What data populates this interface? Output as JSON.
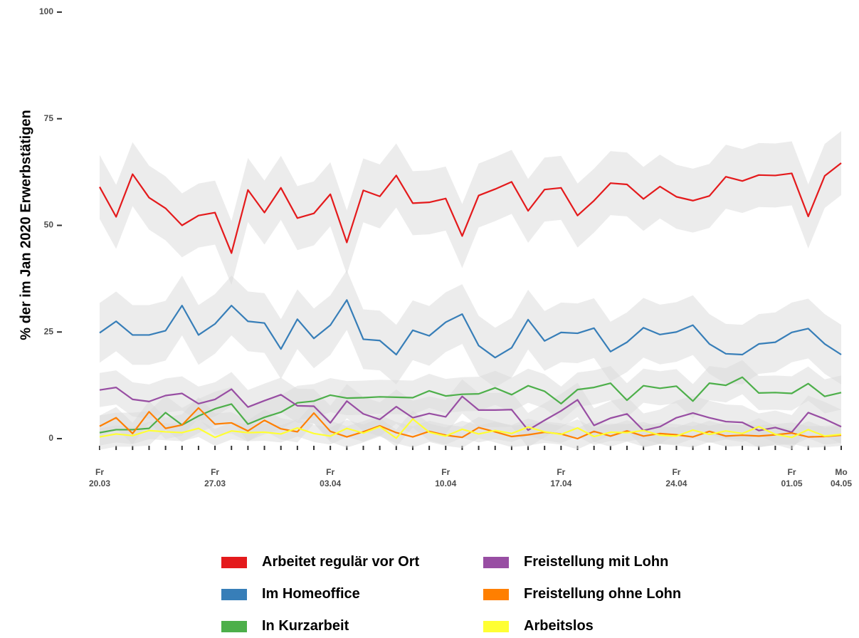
{
  "chart_data": {
    "type": "line",
    "y_label": "% der im Jan 2020 Erwerbstätigen",
    "categories": [
      "Fr 20.03",
      null,
      null,
      null,
      null,
      null,
      null,
      "Fr 27.03",
      null,
      null,
      null,
      null,
      null,
      null,
      "Fr 03.04",
      null,
      null,
      null,
      null,
      null,
      null,
      "Fr 10.04",
      null,
      null,
      null,
      null,
      null,
      null,
      "Fr 17.04",
      null,
      null,
      null,
      null,
      null,
      null,
      "Fr 24.04",
      null,
      null,
      null,
      null,
      null,
      null,
      "Fr 01.05",
      null,
      null,
      "Mo 04.05"
    ],
    "ylim": [
      0,
      100
    ],
    "yticks": [
      0,
      25,
      50,
      75,
      100
    ],
    "band_color": "#d9d9d9",
    "series": [
      {
        "name": "Arbeitet regulär vor Ort",
        "color": "#e41a1c",
        "ci": 7.5,
        "values": [
          59,
          52,
          62,
          56.5,
          54,
          50,
          52.3,
          53,
          43.5,
          58.3,
          53,
          58.8,
          51.7,
          52.8,
          57.3,
          46,
          58.2,
          56.8,
          61.7,
          55.2,
          55.4,
          56.3,
          47.5,
          57,
          58.5,
          60.2,
          53.4,
          58.4,
          58.8,
          52.3,
          55.8,
          59.9,
          59.6,
          56.2,
          59.1,
          56.7,
          55.8,
          56.9,
          61.4,
          60.4,
          61.8,
          61.7,
          62.2,
          52.1,
          61.6,
          64.6
        ]
      },
      {
        "name": "Im Homeoffice",
        "color": "#377eb8",
        "ci": 7,
        "values": [
          24.8,
          27.5,
          24.3,
          24.3,
          25.3,
          31.2,
          24.3,
          26.9,
          31.2,
          27.5,
          27.1,
          21,
          28,
          23.5,
          26.6,
          32.5,
          23.3,
          23,
          19.7,
          25.4,
          24.1,
          27.3,
          29.2,
          21.8,
          19,
          21.3,
          27.9,
          22.9,
          24.9,
          24.7,
          25.9,
          20.4,
          22.6,
          26,
          24.4,
          25,
          26.6,
          22.2,
          19.9,
          19.7,
          22.2,
          22.6,
          24.9,
          25.8,
          22.2,
          19.7
        ]
      },
      {
        "name": "In Kurzarbeit",
        "color": "#4daf4a",
        "ci": 4,
        "values": [
          1.4,
          2.1,
          2.1,
          2.4,
          6.1,
          3.2,
          5.3,
          7,
          8.1,
          3.4,
          5,
          6.2,
          8.4,
          8.8,
          10.2,
          9.5,
          9.6,
          9.8,
          9.7,
          9.6,
          11.2,
          10,
          10.4,
          10.5,
          11.9,
          10.3,
          12.4,
          11.1,
          8.2,
          11.5,
          12,
          13,
          9,
          12.4,
          11.8,
          12.3,
          8.8,
          13,
          12.5,
          14.4,
          10.7,
          10.8,
          10.6,
          12.9,
          9.9,
          10.8
        ]
      },
      {
        "name": "Freistellung mit Lohn",
        "color": "#984ea3",
        "ci": 4,
        "values": [
          11.4,
          12,
          9.2,
          8.7,
          10.1,
          10.6,
          8.2,
          9.2,
          11.6,
          7.4,
          8.9,
          10.3,
          7.7,
          7.6,
          3.7,
          8.8,
          5.8,
          4.5,
          7.5,
          4.9,
          5.9,
          5.1,
          9.9,
          6.7,
          6.7,
          6.8,
          2,
          4.3,
          6.5,
          9.1,
          3.1,
          4.8,
          5.8,
          1.9,
          2.8,
          4.9,
          6,
          4.9,
          4,
          3.8,
          1.9,
          2.6,
          1.5,
          6.1,
          4.6,
          2.8
        ]
      },
      {
        "name": "Freistellung ohne Lohn",
        "color": "#ff7f00",
        "ci": 2.5,
        "values": [
          2.9,
          4.9,
          1.2,
          6.3,
          2.4,
          3.2,
          7.2,
          3.4,
          3.7,
          1.8,
          4.3,
          2.3,
          1.6,
          6,
          1.7,
          0.4,
          1.6,
          3,
          1.4,
          0.4,
          1.7,
          0.8,
          0.3,
          2.6,
          1.6,
          0.5,
          0.9,
          1.5,
          1.1,
          0,
          1.7,
          0.6,
          1.8,
          0.6,
          1.2,
          0.9,
          0.4,
          1.7,
          0.6,
          0.8,
          0.6,
          0.9,
          1.3,
          0.4,
          0.5,
          0.8
        ]
      },
      {
        "name": "Arbeitslos",
        "color": "#ffff33",
        "ci": 2,
        "values": [
          0.4,
          1.1,
          0.7,
          1.9,
          1.6,
          1.4,
          2.4,
          0.3,
          1.8,
          1.4,
          1.5,
          1.1,
          2.5,
          1.2,
          0.6,
          2.4,
          1.3,
          2.8,
          0.1,
          4.6,
          1.5,
          0.6,
          2.2,
          1.1,
          1.9,
          1.2,
          2.7,
          1.6,
          1,
          2.5,
          0.5,
          1.5,
          1.4,
          1.9,
          0.8,
          0.6,
          2,
          1,
          1.8,
          1.2,
          2.8,
          1,
          0.3,
          2.1,
          0.6,
          1
        ]
      }
    ]
  }
}
